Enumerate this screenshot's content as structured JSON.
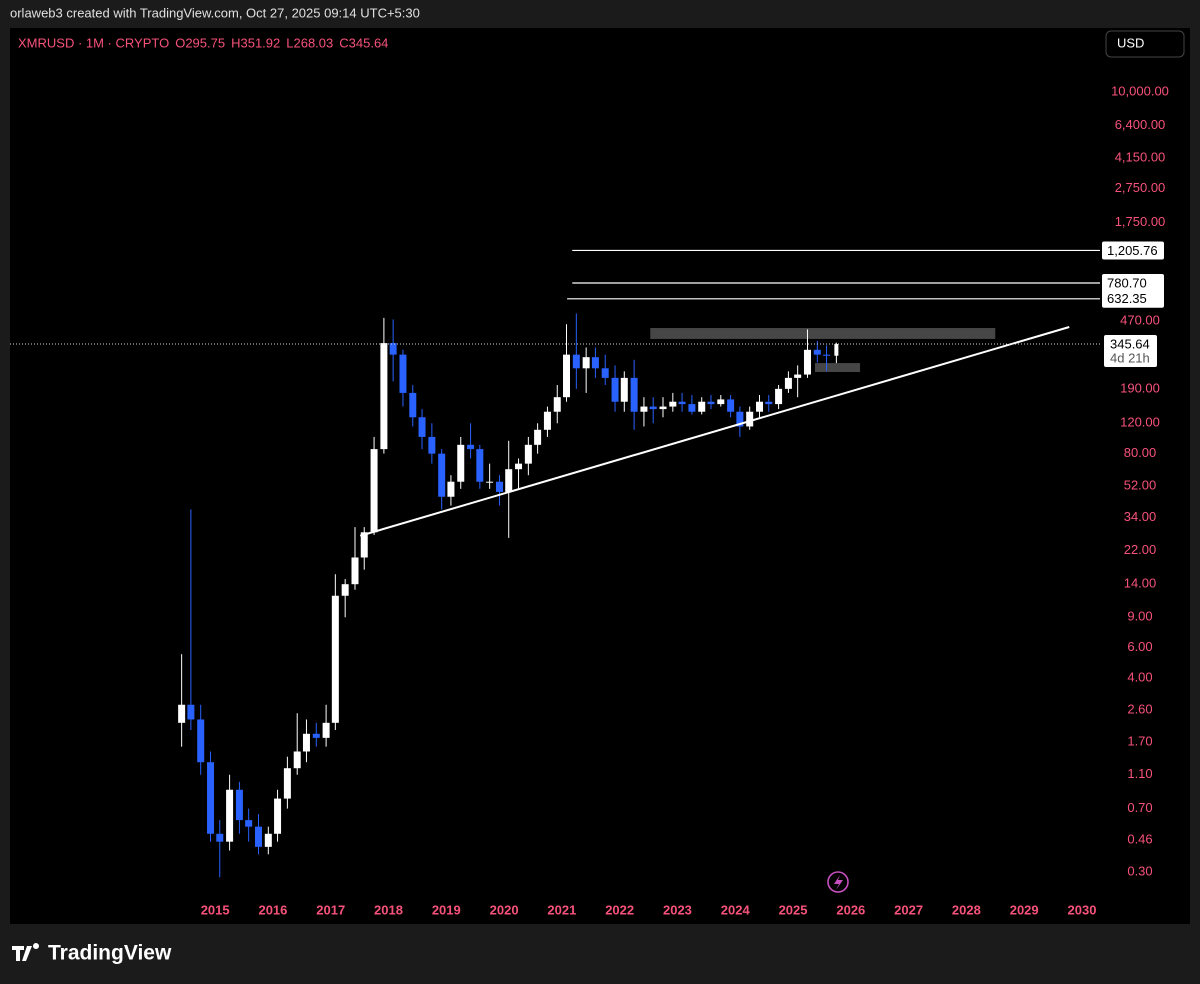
{
  "attribution": "orlaweb3 created with TradingView.com, Oct 27, 2025 09:14 UTC+5:30",
  "logo_text": "TradingView",
  "chart_data": {
    "type": "candlestick",
    "title": "XMRUSD · 1M · CRYPTO",
    "ohlc_letters": [
      "O",
      "H",
      "L",
      "C"
    ],
    "currency": "USD",
    "countdown": "4d 21h",
    "log_scale": true,
    "up_color": "#ffffff",
    "down_color": "#2962ff",
    "label_color": "#f7527a",
    "x": [
      2014.42,
      2014.58,
      2014.75,
      2014.92,
      2015.08,
      2015.25,
      2015.42,
      2015.58,
      2015.75,
      2015.92,
      2016.08,
      2016.25,
      2016.42,
      2016.58,
      2016.75,
      2016.92,
      2017.08,
      2017.25,
      2017.42,
      2017.58,
      2017.75,
      2017.92,
      2018.08,
      2018.25,
      2018.42,
      2018.58,
      2018.75,
      2018.92,
      2019.08,
      2019.25,
      2019.42,
      2019.58,
      2019.75,
      2019.92,
      2020.08,
      2020.25,
      2020.42,
      2020.58,
      2020.75,
      2020.92,
      2021.08,
      2021.25,
      2021.42,
      2021.58,
      2021.75,
      2021.92,
      2022.08,
      2022.25,
      2022.42,
      2022.58,
      2022.75,
      2022.92,
      2023.08,
      2023.25,
      2023.42,
      2023.58,
      2023.75,
      2023.92,
      2024.08,
      2024.25,
      2024.42,
      2024.58,
      2024.75,
      2024.92,
      2025.08,
      2025.25,
      2025.42,
      2025.58,
      2025.75
    ],
    "open": [
      2.2,
      2.8,
      2.3,
      1.3,
      0.5,
      0.45,
      0.9,
      0.6,
      0.55,
      0.42,
      0.5,
      0.8,
      1.2,
      1.5,
      1.9,
      1.8,
      2.2,
      12,
      14,
      20,
      28,
      85,
      350,
      300,
      180,
      130,
      100,
      80,
      45,
      55,
      90,
      85,
      55,
      55,
      48,
      65,
      70,
      90,
      110,
      140,
      170,
      300,
      250,
      290,
      250,
      220,
      160,
      220,
      140,
      150,
      145,
      150,
      160,
      155,
      140,
      160,
      155,
      165,
      140,
      115,
      140,
      160,
      155,
      190,
      220,
      230,
      320,
      300,
      295.75
    ],
    "high": [
      5.5,
      38,
      2.8,
      1.5,
      0.6,
      1.1,
      1,
      0.7,
      0.65,
      0.55,
      0.9,
      1.4,
      2.5,
      2.3,
      2.2,
      2.8,
      16,
      15,
      30,
      30,
      100,
      490,
      480,
      320,
      200,
      145,
      120,
      85,
      60,
      100,
      120,
      90,
      70,
      60,
      95,
      75,
      100,
      120,
      150,
      200,
      450,
      520,
      330,
      330,
      300,
      260,
      240,
      280,
      170,
      170,
      170,
      180,
      180,
      175,
      170,
      175,
      175,
      175,
      150,
      150,
      175,
      175,
      200,
      240,
      260,
      420,
      360,
      340,
      351.92
    ],
    "low": [
      1.6,
      2,
      1.1,
      0.45,
      0.28,
      0.4,
      0.5,
      0.45,
      0.38,
      0.38,
      0.45,
      0.7,
      1.1,
      1.3,
      1.6,
      1.6,
      2,
      9,
      13,
      17,
      27,
      80,
      210,
      150,
      115,
      85,
      70,
      38,
      40,
      50,
      75,
      50,
      50,
      40,
      26,
      50,
      60,
      80,
      100,
      120,
      160,
      190,
      180,
      220,
      200,
      140,
      140,
      110,
      115,
      120,
      130,
      140,
      140,
      135,
      135,
      145,
      150,
      130,
      100,
      110,
      130,
      140,
      145,
      180,
      170,
      220,
      270,
      240,
      268.03
    ],
    "close": [
      2.8,
      2.3,
      1.3,
      0.5,
      0.45,
      0.9,
      0.6,
      0.55,
      0.42,
      0.5,
      0.8,
      1.2,
      1.5,
      1.9,
      1.8,
      2.2,
      12,
      14,
      20,
      28,
      85,
      350,
      300,
      180,
      130,
      100,
      80,
      45,
      55,
      90,
      85,
      55,
      55,
      48,
      65,
      70,
      90,
      110,
      140,
      170,
      300,
      250,
      290,
      250,
      220,
      160,
      220,
      140,
      150,
      145,
      150,
      160,
      155,
      140,
      160,
      155,
      165,
      140,
      115,
      140,
      160,
      155,
      190,
      220,
      230,
      320,
      300,
      295.75,
      345.64
    ],
    "xlim": [
      2011.45,
      2030.26
    ],
    "xticks": [
      2015,
      2016,
      2017,
      2018,
      2019,
      2020,
      2021,
      2022,
      2023,
      2024,
      2025,
      2026,
      2027,
      2028,
      2029,
      2030
    ],
    "ylim": [
      0.215,
      23500
    ],
    "yticks": [
      {
        "value": 10000,
        "label": "10,000.00"
      },
      {
        "value": 6400,
        "label": "6,400.00"
      },
      {
        "value": 4150,
        "label": "4,150.00"
      },
      {
        "value": 2750,
        "label": "2,750.00"
      },
      {
        "value": 1750,
        "label": "1,750.00"
      },
      {
        "value": 470,
        "label": "470.00"
      },
      {
        "value": 190,
        "label": "190.00"
      },
      {
        "value": 120,
        "label": "120.00"
      },
      {
        "value": 80,
        "label": "80.00"
      },
      {
        "value": 52,
        "label": "52.00"
      },
      {
        "value": 34,
        "label": "34.00"
      },
      {
        "value": 22,
        "label": "22.00"
      },
      {
        "value": 14,
        "label": "14.00"
      },
      {
        "value": 9,
        "label": "9.00"
      },
      {
        "value": 6,
        "label": "6.00"
      },
      {
        "value": 4,
        "label": "4.00"
      },
      {
        "value": 2.6,
        "label": "2.60"
      },
      {
        "value": 1.7,
        "label": "1.70"
      },
      {
        "value": 1.1,
        "label": "1.10"
      },
      {
        "value": 0.7,
        "label": "0.70"
      },
      {
        "value": 0.46,
        "label": "0.46"
      },
      {
        "value": 0.3,
        "label": "0.30"
      }
    ],
    "levels": [
      {
        "value": 1205.76,
        "label": "1,205.76",
        "x_from": 2021.18
      },
      {
        "value": 780.7,
        "label": "780.70",
        "x_from": 2021.18
      },
      {
        "value": 632.35,
        "label": "632.35",
        "x_from": 2021.09
      }
    ],
    "zones": [
      {
        "from": 2022.53,
        "to": 2028.5,
        "low": 370,
        "high": 428
      },
      {
        "from": 2025.38,
        "to": 2026.16,
        "low": 238,
        "high": 268
      }
    ],
    "trendline": {
      "x": [
        2017.51,
        2029.78
      ],
      "y": [
        26.7,
        434
      ]
    }
  }
}
